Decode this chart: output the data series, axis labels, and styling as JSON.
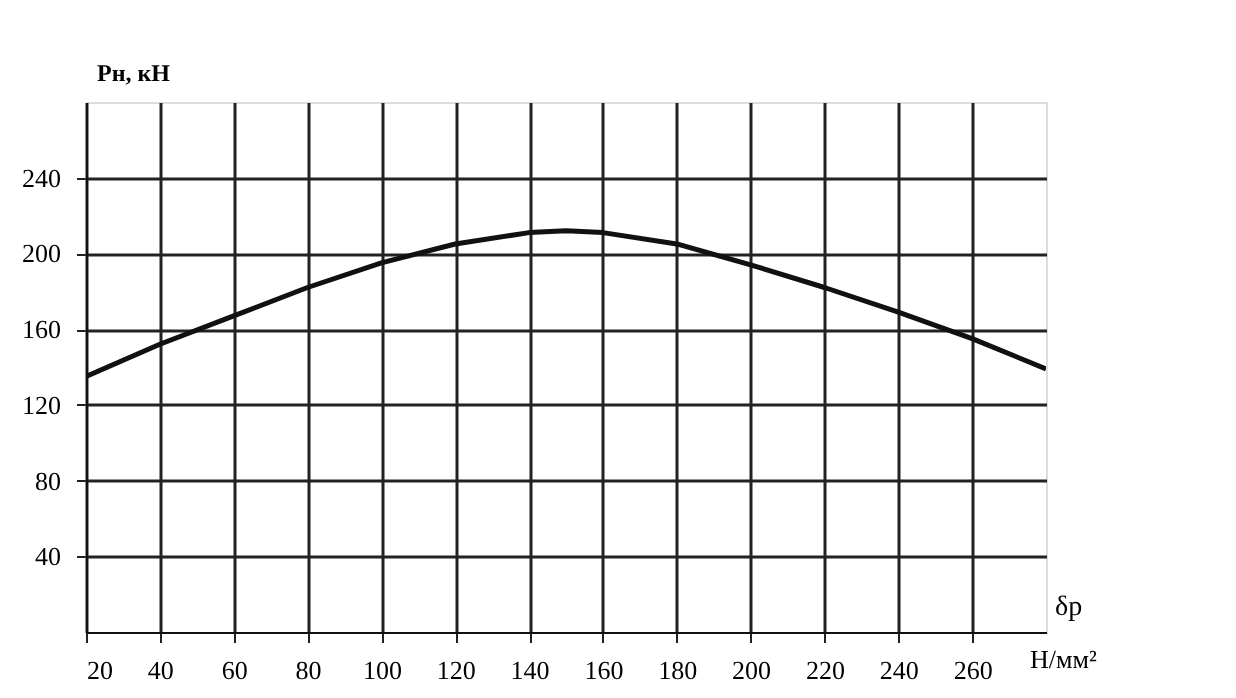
{
  "chart_data": {
    "type": "line",
    "ylabel": "Pн, кН",
    "xlabel": "δр",
    "x": [
      20,
      40,
      60,
      80,
      100,
      120,
      140,
      150,
      160,
      180,
      200,
      220,
      240,
      260,
      280
    ],
    "series": [
      {
        "color": "#111111",
        "values": [
          135,
          152,
          167,
          182,
          195,
          205,
          211,
          212,
          211,
          205,
          194,
          182,
          169,
          155,
          139
        ]
      }
    ],
    "xlim": [
      20,
      280
    ],
    "xticks": [
      20,
      40,
      60,
      80,
      100,
      120,
      140,
      160,
      180,
      200,
      220,
      240,
      260
    ],
    "annotations": [
      "Н/мм²"
    ],
    "ylim": [
      0,
      280
    ],
    "yticks": [
      40,
      80,
      120,
      160,
      200,
      240
    ],
    "grid": true,
    "marker": "none",
    "line_style": "solid"
  }
}
